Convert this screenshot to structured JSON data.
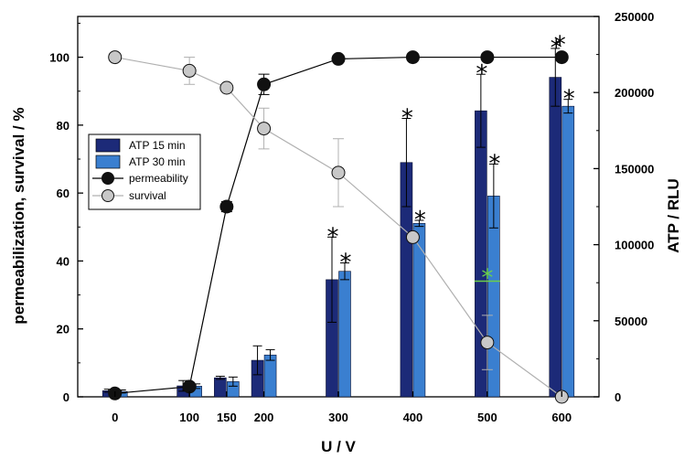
{
  "chart_data": {
    "type": "bar",
    "x_label": "U / V",
    "y_label_left": "permeabilization, survival / %",
    "y_label_right": "ATP / RLU",
    "x_ticks": [
      "0",
      "100",
      "150",
      "200",
      "300",
      "400",
      "500",
      "600"
    ],
    "x_values": [
      0,
      100,
      150,
      200,
      300,
      400,
      500,
      600
    ],
    "x_range": [
      -50,
      650
    ],
    "y_left_ticks": [
      "0",
      "20",
      "40",
      "60",
      "80",
      "100"
    ],
    "y_left_range": [
      0,
      112
    ],
    "y_right_ticks": [
      "0",
      "50000",
      "100000",
      "150000",
      "200000",
      "250000"
    ],
    "y_right_range": [
      0,
      250000
    ],
    "legend": {
      "position": "center-left",
      "entries": [
        "ATP 15 min",
        "ATP 30 min",
        "permeability",
        "survival"
      ]
    },
    "bar_series": [
      {
        "name": "ATP 15 min",
        "color": "#1c2a78",
        "x": [
          0,
          100,
          150,
          200,
          300,
          400,
          500,
          600
        ],
        "values": [
          4000,
          7200,
          12500,
          24000,
          77000,
          154000,
          188000,
          210000
        ],
        "errors": [
          1000,
          3500,
          1000,
          9500,
          28000,
          29000,
          24000,
          19000
        ],
        "significant": [
          false,
          false,
          false,
          false,
          true,
          true,
          true,
          true
        ]
      },
      {
        "name": "ATP 30 min",
        "color": "#3a7fd0",
        "x": [
          0,
          100,
          150,
          200,
          300,
          400,
          500,
          600
        ],
        "values": [
          3500,
          7000,
          10000,
          27500,
          82500,
          114000,
          132000,
          191000
        ],
        "errors": [
          1000,
          1500,
          3000,
          3500,
          5500,
          2000,
          21000,
          4500
        ],
        "significant": [
          false,
          false,
          false,
          false,
          true,
          true,
          true,
          true
        ]
      }
    ],
    "line_series": [
      {
        "name": "permeability",
        "marker_color": "#111111",
        "line_color": "#000000",
        "x": [
          0,
          100,
          150,
          200,
          300,
          400,
          500,
          600
        ],
        "values": [
          1,
          3,
          56,
          92,
          99.5,
          100,
          100,
          100
        ],
        "errors": [
          0,
          0,
          1.5,
          3,
          0,
          0,
          0,
          0
        ]
      },
      {
        "name": "survival",
        "marker_color": "#c8c8c8",
        "line_color": "#b0b0b0",
        "x": [
          0,
          100,
          150,
          200,
          300,
          400,
          500,
          600
        ],
        "values": [
          100,
          96,
          91,
          79,
          66,
          47,
          16,
          0
        ],
        "errors": [
          0,
          4,
          0,
          6,
          10,
          0,
          8,
          0
        ]
      }
    ],
    "green_marker": {
      "x": 500,
      "value": 76000,
      "color": "#6ccf4a"
    }
  }
}
